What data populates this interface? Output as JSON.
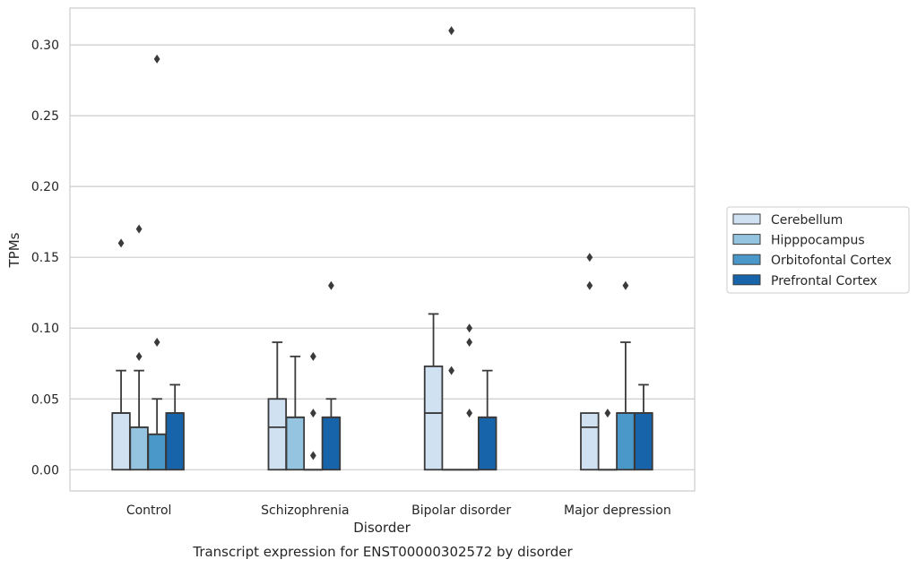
{
  "caption": "Transcript expression for ENST00000302572 by disorder",
  "chart_data": {
    "type": "box",
    "xlabel": "Disorder",
    "ylabel": "TPMs",
    "ylim": [
      -0.015,
      0.326
    ],
    "yticks": [
      0.0,
      0.05,
      0.1,
      0.15,
      0.2,
      0.25,
      0.3
    ],
    "ytick_labels": [
      "0.00",
      "0.05",
      "0.10",
      "0.15",
      "0.20",
      "0.25",
      "0.30"
    ],
    "grid": "horizontal",
    "legend_position": "right",
    "categories": [
      "Control",
      "Schizophrenia",
      "Bipolar disorder",
      "Major depression"
    ],
    "series": [
      {
        "name": "Cerebellum",
        "color": "#d0e1f2",
        "boxes": [
          {
            "q1": 0.0,
            "median": 0.04,
            "q3": 0.04,
            "whisker_low": 0.0,
            "whisker_high": 0.07,
            "outliers": [
              0.16
            ]
          },
          {
            "q1": 0.0,
            "median": 0.03,
            "q3": 0.05,
            "whisker_low": 0.0,
            "whisker_high": 0.09,
            "outliers": []
          },
          {
            "q1": 0.0,
            "median": 0.04,
            "q3": 0.073,
            "whisker_low": 0.0,
            "whisker_high": 0.11,
            "outliers": []
          },
          {
            "q1": 0.0,
            "median": 0.03,
            "q3": 0.04,
            "whisker_low": 0.0,
            "whisker_high": 0.04,
            "outliers": [
              0.13,
              0.15
            ]
          }
        ]
      },
      {
        "name": "Hipppocampus",
        "color": "#94c4df",
        "boxes": [
          {
            "q1": 0.0,
            "median": 0.03,
            "q3": 0.03,
            "whisker_low": 0.0,
            "whisker_high": 0.07,
            "outliers": [
              0.08,
              0.17
            ]
          },
          {
            "q1": 0.0,
            "median": 0.037,
            "q3": 0.037,
            "whisker_low": 0.0,
            "whisker_high": 0.08,
            "outliers": []
          },
          {
            "q1": 0.0,
            "median": 0.0,
            "q3": 0.0,
            "whisker_low": 0.0,
            "whisker_high": 0.0,
            "outliers": [
              0.07,
              0.31
            ]
          },
          {
            "q1": 0.0,
            "median": 0.0,
            "q3": 0.0,
            "whisker_low": 0.0,
            "whisker_high": 0.0,
            "outliers": [
              0.04
            ]
          }
        ]
      },
      {
        "name": "Orbitofontal Cortex",
        "color": "#4a98c9",
        "boxes": [
          {
            "q1": 0.0,
            "median": 0.025,
            "q3": 0.025,
            "whisker_low": 0.0,
            "whisker_high": 0.05,
            "outliers": [
              0.09,
              0.29
            ]
          },
          {
            "q1": 0.0,
            "median": 0.0,
            "q3": 0.0,
            "whisker_low": 0.0,
            "whisker_high": 0.0,
            "outliers": [
              0.01,
              0.04,
              0.08
            ]
          },
          {
            "q1": 0.0,
            "median": 0.0,
            "q3": 0.0,
            "whisker_low": 0.0,
            "whisker_high": 0.0,
            "outliers": [
              0.04,
              0.09,
              0.1
            ]
          },
          {
            "q1": 0.0,
            "median": 0.04,
            "q3": 0.04,
            "whisker_low": 0.0,
            "whisker_high": 0.09,
            "outliers": [
              0.13
            ]
          }
        ]
      },
      {
        "name": "Prefrontal Cortex",
        "color": "#1764ab",
        "boxes": [
          {
            "q1": 0.0,
            "median": 0.04,
            "q3": 0.04,
            "whisker_low": 0.0,
            "whisker_high": 0.06,
            "outliers": []
          },
          {
            "q1": 0.0,
            "median": 0.037,
            "q3": 0.037,
            "whisker_low": 0.0,
            "whisker_high": 0.05,
            "outliers": [
              0.13
            ]
          },
          {
            "q1": 0.0,
            "median": 0.037,
            "q3": 0.037,
            "whisker_low": 0.0,
            "whisker_high": 0.07,
            "outliers": []
          },
          {
            "q1": 0.0,
            "median": 0.04,
            "q3": 0.04,
            "whisker_low": 0.0,
            "whisker_high": 0.06,
            "outliers": []
          }
        ]
      }
    ]
  }
}
